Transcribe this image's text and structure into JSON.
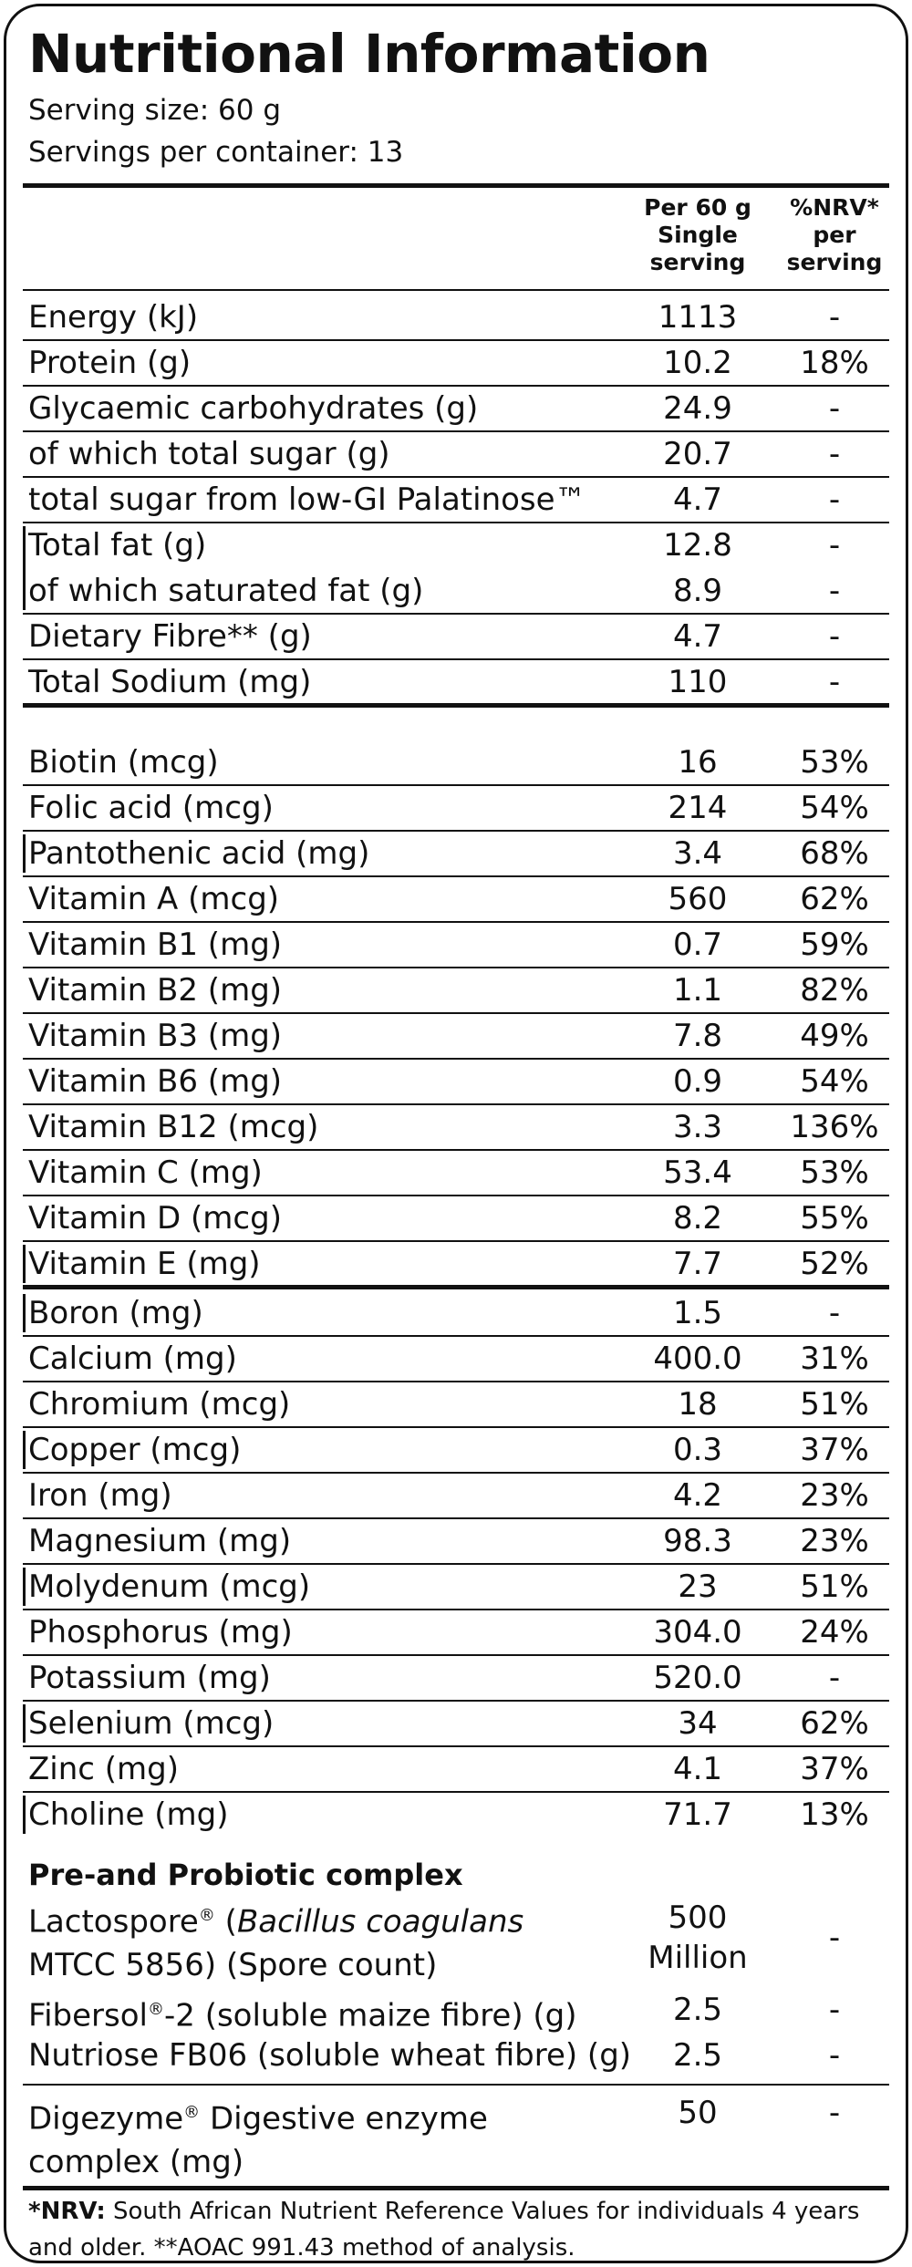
{
  "title": "Nutritional Information",
  "serving_size": "Serving size: 60 g",
  "servings_per_container": "Servings per container: 13",
  "headers": {
    "per_line1": "Per 60 g",
    "per_line2": "Single",
    "per_line3": "serving",
    "nrv_line1": "%NRV* per",
    "nrv_line2": "serving"
  },
  "macros": [
    {
      "name": "Energy (kJ)",
      "value": "1113",
      "nrv": "-"
    },
    {
      "name": "Protein (g)",
      "value": "10.2",
      "nrv": "18%"
    },
    {
      "name": "Glycaemic carbohydrates (g)",
      "value": "24.9",
      "nrv": "-"
    },
    {
      "name": "of which total sugar (g)",
      "value": "20.7",
      "nrv": "-"
    },
    {
      "name": "total sugar from low-GI Palatinose™",
      "value": "4.7",
      "nrv": "-"
    },
    {
      "name": "Total fat (g)",
      "value": "12.8",
      "nrv": "-"
    },
    {
      "name": "of which saturated fat (g)",
      "value": "8.9",
      "nrv": "-"
    },
    {
      "name": "Dietary Fibre** (g)",
      "value": "4.7",
      "nrv": "-"
    },
    {
      "name": "Total Sodium (mg)",
      "value": "110",
      "nrv": "-"
    }
  ],
  "vitamins": [
    {
      "name": "Biotin (mcg)",
      "value": "16",
      "nrv": "53%"
    },
    {
      "name": "Folic acid (mcg)",
      "value": "214",
      "nrv": "54%"
    },
    {
      "name": "Pantothenic acid (mg)",
      "value": "3.4",
      "nrv": "68%"
    },
    {
      "name": "Vitamin A (mcg)",
      "value": "560",
      "nrv": "62%"
    },
    {
      "name": "Vitamin B1 (mg)",
      "value": "0.7",
      "nrv": "59%"
    },
    {
      "name": "Vitamin B2 (mg)",
      "value": "1.1",
      "nrv": "82%"
    },
    {
      "name": "Vitamin B3 (mg)",
      "value": "7.8",
      "nrv": "49%"
    },
    {
      "name": "Vitamin B6 (mg)",
      "value": "0.9",
      "nrv": "54%"
    },
    {
      "name": "Vitamin B12 (mcg)",
      "value": "3.3",
      "nrv": "136%"
    },
    {
      "name": "Vitamin C (mg)",
      "value": "53.4",
      "nrv": "53%"
    },
    {
      "name": "Vitamin D (mcg)",
      "value": "8.2",
      "nrv": "55%"
    },
    {
      "name": "Vitamin E (mg)",
      "value": "7.7",
      "nrv": "52%"
    }
  ],
  "minerals": [
    {
      "name": "Boron (mg)",
      "value": "1.5",
      "nrv": "-"
    },
    {
      "name": "Calcium (mg)",
      "value": "400.0",
      "nrv": "31%"
    },
    {
      "name": "Chromium (mcg)",
      "value": "18",
      "nrv": "51%"
    },
    {
      "name": "Copper (mcg)",
      "value": "0.3",
      "nrv": "37%"
    },
    {
      "name": "Iron (mg)",
      "value": "4.2",
      "nrv": "23%"
    },
    {
      "name": "Magnesium (mg)",
      "value": "98.3",
      "nrv": "23%"
    },
    {
      "name": "Molydenum (mcg)",
      "value": "23",
      "nrv": "51%"
    },
    {
      "name": "Phosphorus (mg)",
      "value": "304.0",
      "nrv": "24%"
    },
    {
      "name": "Potassium (mg)",
      "value": "520.0",
      "nrv": "-"
    },
    {
      "name": "Selenium (mcg)",
      "value": "34",
      "nrv": "62%"
    },
    {
      "name": "Zinc (mg)",
      "value": "4.1",
      "nrv": "37%"
    },
    {
      "name": "Choline (mg)",
      "value": "71.7",
      "nrv": "13%"
    }
  ],
  "complex": {
    "heading": "Pre-and Probiotic complex",
    "lactospore": {
      "name_a": "Lactospore",
      "reg": "®",
      "name_b": " (",
      "name_italic": "Bacillus coagulans",
      "name_c": "MTCC 5856) (Spore count)",
      "value_line1": "500",
      "value_line2": "Million",
      "nrv": "-"
    },
    "fibersol": {
      "name_a": "Fibersol",
      "reg": "®",
      "name_b": "-2 (soluble maize fibre) (g)",
      "value": "2.5",
      "nrv": "-"
    },
    "nutriose": {
      "name": "Nutriose FB06 (soluble wheat fibre) (g)",
      "value": "2.5",
      "nrv": "-"
    },
    "digezyme": {
      "name_a": "Digezyme",
      "reg": "®",
      "name_b": " Digestive enzyme",
      "name_c": "complex (mg)",
      "value": "50",
      "nrv": "-"
    }
  },
  "footnote": {
    "nrv_bold": "*NRV:",
    "nrv_text": " South African Nutrient Reference Values for individuals 4 years and older. **AOAC 991.43 method of analysis."
  }
}
